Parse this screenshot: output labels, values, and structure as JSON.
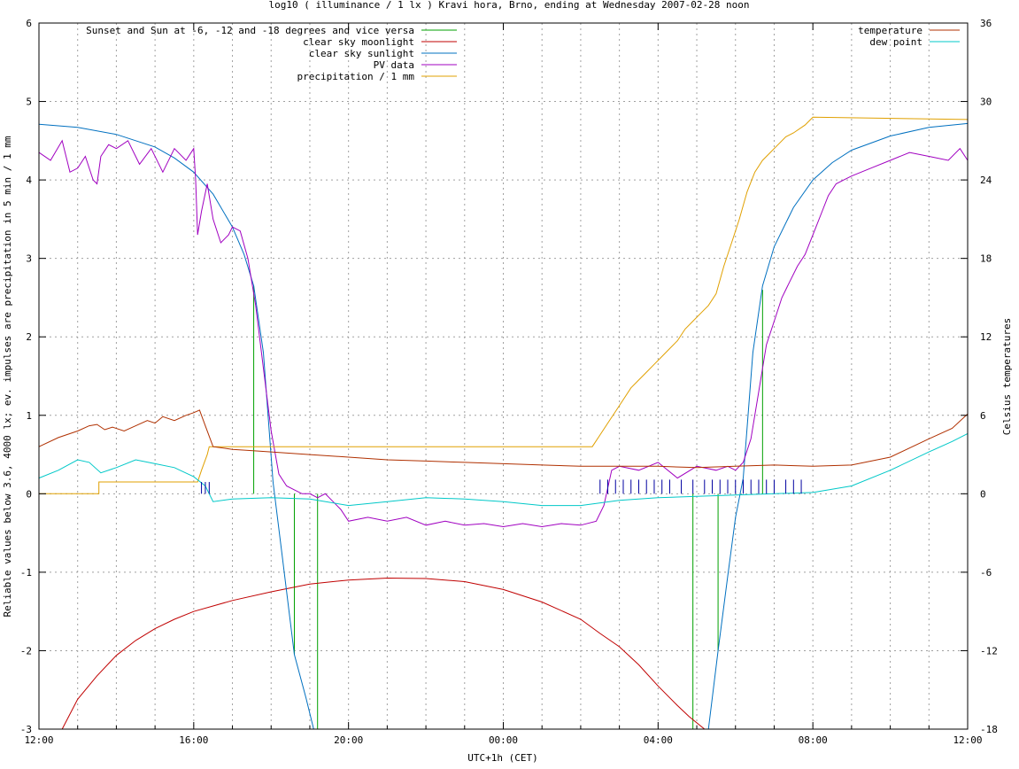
{
  "chart_data": {
    "type": "line",
    "title": "log10 ( illuminance / 1 lx ) Kravi hora, Brno, ending at Wednesday 2007-02-28 noon",
    "xlabel": "UTC+1h (CET)",
    "ylabel": "Reliable values below 3.6, 4000 lx; ev. impulses are precipitation in 5 min / 1 mm",
    "y2label": "Celsius temperatures",
    "x_unit": "hours since 12:00",
    "xlim": [
      0,
      24
    ],
    "ylim": [
      -3,
      6
    ],
    "y2lim": [
      -18,
      36
    ],
    "x_ticks": [
      {
        "x": 0,
        "label": "12:00"
      },
      {
        "x": 4,
        "label": "16:00"
      },
      {
        "x": 8,
        "label": "20:00"
      },
      {
        "x": 12,
        "label": "00:00"
      },
      {
        "x": 16,
        "label": "04:00"
      },
      {
        "x": 20,
        "label": "08:00"
      },
      {
        "x": 24,
        "label": "12:00"
      }
    ],
    "y_ticks": [
      -3,
      -2,
      -1,
      0,
      1,
      2,
      3,
      4,
      5,
      6
    ],
    "y2_ticks": [
      -18,
      -12,
      -6,
      0,
      6,
      12,
      18,
      24,
      30,
      36
    ],
    "grid": true,
    "legend_left": [
      "Sunset and Sun at -6, -12 and -18 degrees and vice versa",
      "clear sky moonlight",
      "clear sky sunlight",
      "PV data",
      "precipitation / 1 mm"
    ],
    "legend_right": [
      "temperature",
      "dew point"
    ],
    "series": [
      {
        "name": "Sunset and Sun at -6, -12 and -18 degrees and vice versa",
        "color": "#00a000",
        "kind": "impulses",
        "points": [
          [
            5.55,
            2.65
          ],
          [
            6.05,
            0.0
          ],
          [
            6.6,
            -2.05
          ],
          [
            7.2,
            -3.0
          ],
          [
            16.9,
            -3.0
          ],
          [
            17.55,
            -2.0
          ],
          [
            18.2,
            0.0
          ],
          [
            18.7,
            2.6
          ]
        ]
      },
      {
        "name": "clear sky moonlight",
        "color": "#c00000",
        "kind": "line",
        "points": [
          [
            0.6,
            -3.0
          ],
          [
            1.0,
            -2.62
          ],
          [
            1.5,
            -2.32
          ],
          [
            2.0,
            -2.06
          ],
          [
            2.5,
            -1.87
          ],
          [
            3.0,
            -1.72
          ],
          [
            3.5,
            -1.6
          ],
          [
            4.0,
            -1.5
          ],
          [
            5.0,
            -1.36
          ],
          [
            6.0,
            -1.25
          ],
          [
            7.0,
            -1.15
          ],
          [
            8.0,
            -1.1
          ],
          [
            9.0,
            -1.075
          ],
          [
            10.0,
            -1.08
          ],
          [
            11.0,
            -1.12
          ],
          [
            12.0,
            -1.22
          ],
          [
            13.0,
            -1.38
          ],
          [
            14.0,
            -1.6
          ],
          [
            14.5,
            -1.78
          ],
          [
            15.0,
            -1.95
          ],
          [
            15.5,
            -2.18
          ],
          [
            16.0,
            -2.45
          ],
          [
            16.5,
            -2.7
          ],
          [
            16.8,
            -2.84
          ],
          [
            17.2,
            -3.0
          ]
        ]
      },
      {
        "name": "clear sky sunlight",
        "color": "#0070c0",
        "kind": "line",
        "points": [
          [
            0.0,
            4.71
          ],
          [
            1.0,
            4.67
          ],
          [
            2.0,
            4.58
          ],
          [
            3.0,
            4.42
          ],
          [
            3.5,
            4.28
          ],
          [
            4.0,
            4.1
          ],
          [
            4.5,
            3.82
          ],
          [
            5.0,
            3.4
          ],
          [
            5.3,
            3.05
          ],
          [
            5.55,
            2.65
          ],
          [
            5.8,
            1.8
          ],
          [
            6.05,
            0.15
          ],
          [
            6.3,
            -0.85
          ],
          [
            6.6,
            -2.05
          ],
          [
            6.9,
            -2.6
          ],
          [
            7.1,
            -3.0
          ],
          [
            17.3,
            -3.0
          ],
          [
            17.55,
            -2.0
          ],
          [
            17.8,
            -1.05
          ],
          [
            18.0,
            -0.3
          ],
          [
            18.2,
            0.2
          ],
          [
            18.45,
            1.8
          ],
          [
            18.7,
            2.65
          ],
          [
            19.0,
            3.15
          ],
          [
            19.5,
            3.65
          ],
          [
            20.0,
            4.0
          ],
          [
            20.5,
            4.22
          ],
          [
            21.0,
            4.38
          ],
          [
            22.0,
            4.56
          ],
          [
            23.0,
            4.67
          ],
          [
            24.0,
            4.72
          ]
        ]
      },
      {
        "name": "PV data",
        "color": "#a000c0",
        "kind": "line",
        "points": [
          [
            0.0,
            4.35
          ],
          [
            0.3,
            4.25
          ],
          [
            0.6,
            4.5
          ],
          [
            0.8,
            4.1
          ],
          [
            1.0,
            4.15
          ],
          [
            1.2,
            4.3
          ],
          [
            1.4,
            4.0
          ],
          [
            1.5,
            3.95
          ],
          [
            1.6,
            4.3
          ],
          [
            1.8,
            4.45
          ],
          [
            2.0,
            4.4
          ],
          [
            2.3,
            4.5
          ],
          [
            2.6,
            4.2
          ],
          [
            2.9,
            4.4
          ],
          [
            3.2,
            4.1
          ],
          [
            3.5,
            4.4
          ],
          [
            3.8,
            4.25
          ],
          [
            4.0,
            4.4
          ],
          [
            4.05,
            4.0
          ],
          [
            4.1,
            3.3
          ],
          [
            4.2,
            3.6
          ],
          [
            4.35,
            3.95
          ],
          [
            4.5,
            3.5
          ],
          [
            4.7,
            3.2
          ],
          [
            4.9,
            3.3
          ],
          [
            5.0,
            3.4
          ],
          [
            5.2,
            3.35
          ],
          [
            5.4,
            3.0
          ],
          [
            5.6,
            2.4
          ],
          [
            5.8,
            1.6
          ],
          [
            6.0,
            0.8
          ],
          [
            6.2,
            0.25
          ],
          [
            6.4,
            0.1
          ],
          [
            6.6,
            0.05
          ],
          [
            6.8,
            0.0
          ],
          [
            7.0,
            0.0
          ],
          [
            7.2,
            -0.05
          ],
          [
            7.4,
            0.0
          ],
          [
            7.6,
            -0.1
          ],
          [
            7.8,
            -0.2
          ],
          [
            8.0,
            -0.35
          ],
          [
            8.5,
            -0.3
          ],
          [
            9.0,
            -0.35
          ],
          [
            9.5,
            -0.3
          ],
          [
            10.0,
            -0.4
          ],
          [
            10.5,
            -0.35
          ],
          [
            11.0,
            -0.4
          ],
          [
            11.5,
            -0.38
          ],
          [
            12.0,
            -0.42
          ],
          [
            12.5,
            -0.38
          ],
          [
            13.0,
            -0.42
          ],
          [
            13.5,
            -0.38
          ],
          [
            14.0,
            -0.4
          ],
          [
            14.4,
            -0.35
          ],
          [
            14.6,
            -0.15
          ],
          [
            14.8,
            0.3
          ],
          [
            15.0,
            0.35
          ],
          [
            15.5,
            0.3
          ],
          [
            16.0,
            0.4
          ],
          [
            16.5,
            0.2
          ],
          [
            17.0,
            0.35
          ],
          [
            17.5,
            0.3
          ],
          [
            17.8,
            0.35
          ],
          [
            18.0,
            0.3
          ],
          [
            18.2,
            0.4
          ],
          [
            18.4,
            0.7
          ],
          [
            18.6,
            1.3
          ],
          [
            18.8,
            1.9
          ],
          [
            19.0,
            2.2
          ],
          [
            19.2,
            2.5
          ],
          [
            19.4,
            2.7
          ],
          [
            19.6,
            2.9
          ],
          [
            19.8,
            3.05
          ],
          [
            20.0,
            3.3
          ],
          [
            20.2,
            3.55
          ],
          [
            20.4,
            3.8
          ],
          [
            20.6,
            3.95
          ],
          [
            20.8,
            4.0
          ],
          [
            21.0,
            4.05
          ],
          [
            21.5,
            4.15
          ],
          [
            22.0,
            4.25
          ],
          [
            22.5,
            4.35
          ],
          [
            23.0,
            4.3
          ],
          [
            23.5,
            4.25
          ],
          [
            23.8,
            4.4
          ],
          [
            24.0,
            4.25
          ]
        ]
      },
      {
        "name": "precipitation / 1 mm",
        "color": "#e0a000",
        "kind": "line",
        "points": [
          [
            0.0,
            0.0
          ],
          [
            1.55,
            0.0
          ],
          [
            1.55,
            0.15
          ],
          [
            4.1,
            0.15
          ],
          [
            4.2,
            0.3
          ],
          [
            4.35,
            0.5
          ],
          [
            4.4,
            0.6
          ],
          [
            14.3,
            0.6
          ],
          [
            14.5,
            0.75
          ],
          [
            14.7,
            0.9
          ],
          [
            14.9,
            1.05
          ],
          [
            15.1,
            1.2
          ],
          [
            15.3,
            1.35
          ],
          [
            15.5,
            1.45
          ],
          [
            15.7,
            1.55
          ],
          [
            15.9,
            1.65
          ],
          [
            16.1,
            1.75
          ],
          [
            16.3,
            1.85
          ],
          [
            16.5,
            1.95
          ],
          [
            16.7,
            2.1
          ],
          [
            16.9,
            2.2
          ],
          [
            17.1,
            2.3
          ],
          [
            17.3,
            2.4
          ],
          [
            17.5,
            2.55
          ],
          [
            17.7,
            2.9
          ],
          [
            17.9,
            3.2
          ],
          [
            18.1,
            3.5
          ],
          [
            18.3,
            3.85
          ],
          [
            18.5,
            4.1
          ],
          [
            18.7,
            4.25
          ],
          [
            18.9,
            4.35
          ],
          [
            19.1,
            4.45
          ],
          [
            19.3,
            4.55
          ],
          [
            19.5,
            4.6
          ],
          [
            19.8,
            4.7
          ],
          [
            20.0,
            4.8
          ],
          [
            24.0,
            4.77
          ]
        ]
      },
      {
        "name": "temperature",
        "color": "#b03000",
        "kind": "line",
        "axis": "y2",
        "points": [
          [
            0.0,
            3.6
          ],
          [
            0.5,
            4.3
          ],
          [
            1.0,
            4.8
          ],
          [
            1.3,
            5.2
          ],
          [
            1.5,
            5.3
          ],
          [
            1.7,
            4.9
          ],
          [
            1.9,
            5.1
          ],
          [
            2.2,
            4.8
          ],
          [
            2.5,
            5.2
          ],
          [
            2.8,
            5.6
          ],
          [
            3.0,
            5.4
          ],
          [
            3.2,
            5.9
          ],
          [
            3.5,
            5.6
          ],
          [
            3.8,
            6.0
          ],
          [
            4.0,
            6.2
          ],
          [
            4.15,
            6.4
          ],
          [
            4.3,
            5.2
          ],
          [
            4.5,
            3.6
          ],
          [
            5.0,
            3.4
          ],
          [
            6.0,
            3.2
          ],
          [
            7.0,
            3.0
          ],
          [
            8.0,
            2.8
          ],
          [
            9.0,
            2.6
          ],
          [
            10.0,
            2.5
          ],
          [
            11.0,
            2.4
          ],
          [
            12.0,
            2.3
          ],
          [
            13.0,
            2.2
          ],
          [
            14.0,
            2.1
          ],
          [
            15.0,
            2.1
          ],
          [
            16.0,
            2.1
          ],
          [
            17.0,
            2.0
          ],
          [
            18.0,
            2.1
          ],
          [
            19.0,
            2.2
          ],
          [
            20.0,
            2.1
          ],
          [
            21.0,
            2.2
          ],
          [
            22.0,
            2.8
          ],
          [
            23.0,
            4.2
          ],
          [
            23.6,
            5.0
          ],
          [
            24.0,
            6.1
          ]
        ]
      },
      {
        "name": "dew point",
        "color": "#00c8c8",
        "kind": "line",
        "axis": "y2",
        "points": [
          [
            0.0,
            1.2
          ],
          [
            0.5,
            1.8
          ],
          [
            1.0,
            2.6
          ],
          [
            1.3,
            2.4
          ],
          [
            1.6,
            1.6
          ],
          [
            2.0,
            2.0
          ],
          [
            2.5,
            2.6
          ],
          [
            3.0,
            2.3
          ],
          [
            3.5,
            2.0
          ],
          [
            4.0,
            1.3
          ],
          [
            4.3,
            0.6
          ],
          [
            4.5,
            -0.6
          ],
          [
            5.0,
            -0.4
          ],
          [
            6.0,
            -0.3
          ],
          [
            7.0,
            -0.4
          ],
          [
            8.0,
            -0.9
          ],
          [
            9.0,
            -0.6
          ],
          [
            10.0,
            -0.3
          ],
          [
            11.0,
            -0.4
          ],
          [
            12.0,
            -0.6
          ],
          [
            13.0,
            -0.9
          ],
          [
            14.0,
            -0.9
          ],
          [
            15.0,
            -0.5
          ],
          [
            16.0,
            -0.3
          ],
          [
            17.0,
            -0.2
          ],
          [
            18.0,
            -0.1
          ],
          [
            19.0,
            0.0
          ],
          [
            20.0,
            0.1
          ],
          [
            21.0,
            0.6
          ],
          [
            22.0,
            1.8
          ],
          [
            23.0,
            3.2
          ],
          [
            23.6,
            4.0
          ],
          [
            24.0,
            4.6
          ]
        ]
      },
      {
        "name": "precipitation impulses",
        "color": "#0000a0",
        "kind": "impulses",
        "points": [
          [
            4.2,
            0.15
          ],
          [
            4.3,
            0.15
          ],
          [
            4.4,
            0.15
          ],
          [
            14.5,
            0.18
          ],
          [
            14.7,
            0.18
          ],
          [
            14.9,
            0.18
          ],
          [
            15.1,
            0.18
          ],
          [
            15.3,
            0.18
          ],
          [
            15.5,
            0.18
          ],
          [
            15.7,
            0.18
          ],
          [
            15.9,
            0.18
          ],
          [
            16.1,
            0.18
          ],
          [
            16.3,
            0.18
          ],
          [
            16.6,
            0.18
          ],
          [
            16.9,
            0.18
          ],
          [
            17.2,
            0.18
          ],
          [
            17.4,
            0.18
          ],
          [
            17.6,
            0.18
          ],
          [
            17.8,
            0.18
          ],
          [
            18.0,
            0.18
          ],
          [
            18.2,
            0.18
          ],
          [
            18.4,
            0.18
          ],
          [
            18.6,
            0.18
          ],
          [
            18.8,
            0.18
          ],
          [
            19.0,
            0.18
          ],
          [
            19.3,
            0.18
          ],
          [
            19.5,
            0.18
          ],
          [
            19.7,
            0.18
          ]
        ]
      }
    ]
  }
}
